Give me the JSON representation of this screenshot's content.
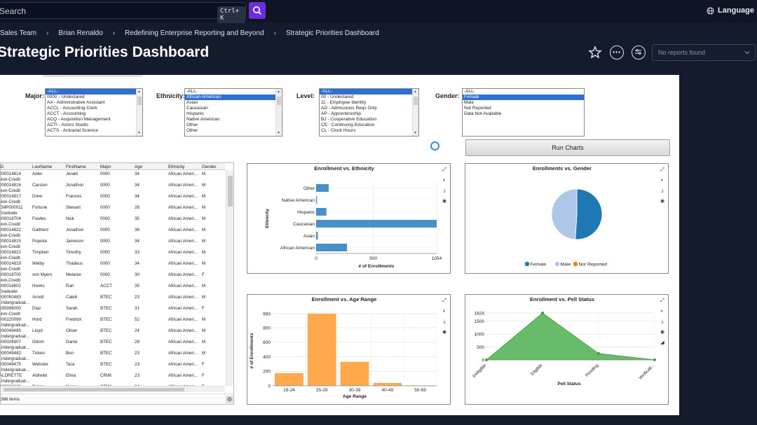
{
  "topbar": {
    "search_label": "Search",
    "shortcut": "Ctrl+ K",
    "language_label": "Language"
  },
  "breadcrumb": [
    "Sales Team",
    "Brian Renaldo",
    "Redefining Enterprise Reporting and Beyond",
    "Strategic Priorities Dashboard"
  ],
  "page_title": "Strategic Priorities Dashboard",
  "reports_dropdown": {
    "value": "No reports found"
  },
  "filters": {
    "major": {
      "label": "Major:",
      "options": [
        "-ALL-",
        "0000 - Undeclared",
        "AA - Administrative Assistant",
        "ACCL - Accounting Clerk",
        "ACCT - Accounting",
        "ACQ - Acquisition Management",
        "ACTI - Actors Studio",
        "ACTS - Actuarial Science"
      ],
      "selected": 0
    },
    "ethnicity": {
      "label": "Ethnicity:",
      "options": [
        "-ALL-",
        "African American",
        "Asian",
        "Caucasian",
        "Hispanic",
        "Native American",
        "Other",
        "Other"
      ],
      "selected": 1
    },
    "level": {
      "label": "Level:",
      "options": [
        "-ALL-",
        "00 - Undeclared",
        "11 - Employee Identity",
        "AD - Admissions Reqs Only",
        "AP - Apprenticeship",
        "BJ - Cooperative Education",
        "CE - Continuing Education",
        "CL - Clock Hours"
      ],
      "selected": 0
    },
    "gender": {
      "label": "Gender:",
      "options": [
        "-ALL-",
        "Female",
        "Male",
        "Not Reported",
        "Data Not Available"
      ],
      "selected": 1
    }
  },
  "run_button": "Run Charts",
  "table": {
    "columns": [
      "ID",
      "LastName",
      "FirstName",
      "Major",
      "Age",
      "Ethnicity",
      "Gender"
    ],
    "rows": [
      {
        "id": "000014814",
        "sub": "Non-Credit",
        "last": "Adler",
        "first": "Jerald",
        "major": "0000",
        "age": "34",
        "eth": "African Ameri...",
        "gender": "M"
      },
      {
        "id": "000014816",
        "sub": "Non-Credit",
        "last": "Carston",
        "first": "Jonathon",
        "major": "0000",
        "age": "34",
        "eth": "African Ameri...",
        "gender": "M"
      },
      {
        "id": "000014817",
        "sub": "Non-Credit",
        "last": "Drew",
        "first": "Frances",
        "major": "0000",
        "age": "34",
        "eth": "African Ameri...",
        "gender": "M"
      },
      {
        "id": "EMP000011",
        "sub": "Graduate",
        "last": "Fortune",
        "first": "Stewart",
        "major": "0000",
        "age": "28",
        "eth": "African Ameri...",
        "gender": "M"
      },
      {
        "id": "000018704",
        "sub": "Non-Credit",
        "last": "Fowles",
        "first": "Nick",
        "major": "0000",
        "age": "35",
        "eth": "African Ameri...",
        "gender": "M"
      },
      {
        "id": "000014822",
        "sub": "Non-Credit",
        "last": "Gaitherz",
        "first": "Jonathon",
        "major": "0000",
        "age": "36",
        "eth": "African Ameri...",
        "gender": "M"
      },
      {
        "id": "000014815",
        "sub": "Non-Credit",
        "last": "Popoka",
        "first": "Jameson",
        "major": "0000",
        "age": "34",
        "eth": "African Ameri...",
        "gender": "M"
      },
      {
        "id": "000014821",
        "sub": "Non-Credit",
        "last": "Timpken",
        "first": "Timothy",
        "major": "0000",
        "age": "33",
        "eth": "African Ameri...",
        "gender": "M"
      },
      {
        "id": "000014819",
        "sub": "Non-Credit",
        "last": "Welby",
        "first": "Thadeus",
        "major": "0000",
        "age": "34",
        "eth": "African Ameri...",
        "gender": "M"
      },
      {
        "id": "000018700",
        "sub": "Non-Credit",
        "last": "von Myers",
        "first": "Melanie",
        "major": "0000",
        "age": "30",
        "eth": "African Ameri...",
        "gender": "F"
      },
      {
        "id": "000018602",
        "sub": "Graduate",
        "last": "Hooks",
        "first": "Ran",
        "major": "ACCT",
        "age": "35",
        "eth": "African Ameri...",
        "gender": "M"
      },
      {
        "id": "000050483",
        "sub": "Undergraduat...",
        "last": "Arnott",
        "first": "Caleb",
        "major": "BTEC",
        "age": "23",
        "eth": "African Ameri...",
        "gender": "M"
      },
      {
        "id": "655998000",
        "sub": "Non-Credit",
        "last": "Diaz",
        "first": "Sarah",
        "major": "BTEC",
        "age": "31",
        "eth": "African Ameri...",
        "gender": "F"
      },
      {
        "id": "000220099",
        "sub": "Undergraduat...",
        "last": "Hord",
        "first": "Fredrick",
        "major": "BTEC",
        "age": "52",
        "eth": "African Ameri...",
        "gender": "M"
      },
      {
        "id": "000049485",
        "sub": "Undergraduat...",
        "last": "Lloyd",
        "first": "Oliver",
        "major": "BTEC",
        "age": "24",
        "eth": "African Ameri...",
        "gender": "M"
      },
      {
        "id": "000026907",
        "sub": "Undergraduat...",
        "last": "Odom",
        "first": "Dante",
        "major": "BTEC",
        "age": "28",
        "eth": "African Ameri...",
        "gender": "M"
      },
      {
        "id": "000049482",
        "sub": "Undergraduat...",
        "last": "Ticken",
        "first": "Ben",
        "major": "BTEC",
        "age": "23",
        "eth": "African Ameri...",
        "gender": "M"
      },
      {
        "id": "000049475",
        "sub": "Undergraduat...",
        "last": "Webster",
        "first": "Tara",
        "major": "BTEC",
        "age": "23",
        "eth": "African Ameri...",
        "gender": "F"
      },
      {
        "id": "ALDRETTE",
        "sub": "Undergraduat...",
        "last": "Aldrette",
        "first": "Elma",
        "major": "CRIM",
        "age": "23",
        "eth": "African Ameri...",
        "gender": "F"
      },
      {
        "id": "000028166",
        "sub": "",
        "last": "Baker",
        "first": "Nancy",
        "major": "CRIM",
        "age": "34",
        "eth": "African Ameri...",
        "gender": "F"
      }
    ],
    "footer": "366 items"
  },
  "charts": {
    "ethnicity": {
      "chart_data": {
        "type": "bar",
        "orientation": "horizontal",
        "title": "Enrollment vs. Ethnicity",
        "xlabel": "# of Enrollments",
        "ylabel": "Ethnicity",
        "categories": [
          "Other",
          "Native American",
          "Hispanic",
          "Caucasian",
          "Asian",
          "African American"
        ],
        "values": [
          110,
          8,
          90,
          1054,
          15,
          270
        ],
        "xticks": [
          "0",
          "500",
          "1054"
        ],
        "xlim": [
          0,
          1054
        ],
        "color": "#4a90c8"
      }
    },
    "gender": {
      "chart_data": {
        "type": "pie",
        "title": "Enrollments vs. Gender",
        "labels": [
          "Female",
          "Male",
          "Not Reported"
        ],
        "values": [
          51,
          49,
          0
        ],
        "colors": [
          "#1f77b4",
          "#aec7e8",
          "#ff7f0e"
        ],
        "legend": "bottom"
      }
    },
    "age": {
      "chart_data": {
        "type": "bar",
        "title": "Enrollment vs. Age Range",
        "xlabel": "Age Range",
        "ylabel": "# of Enrollments",
        "categories": [
          "19-24",
          "25-29",
          "30-39",
          "40-49",
          "50-59"
        ],
        "values": [
          175,
          993,
          330,
          40,
          5
        ],
        "yticks": [
          "0",
          "200",
          "400",
          "600",
          "800",
          "993"
        ],
        "ylim": [
          0,
          993
        ],
        "color": "#ffa94d"
      }
    },
    "pell": {
      "chart_data": {
        "type": "area",
        "title": "Enrollment vs. Pell Status",
        "xlabel": "Pell Status",
        "ylabel": "",
        "categories": [
          "Ineligible",
          "Eligible",
          "Pending",
          "Verificati..."
        ],
        "values": [
          0,
          1824,
          250,
          5
        ],
        "yticks": [
          "0",
          "500",
          "1000",
          "1500",
          "1824"
        ],
        "ylim": [
          0,
          1824
        ],
        "color": "#4caf50"
      }
    }
  }
}
